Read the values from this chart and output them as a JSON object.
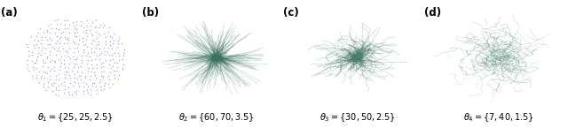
{
  "panels": [
    "(a)",
    "(b)",
    "(c)",
    "(d)"
  ],
  "labels": [
    "$\\theta_1 = \\{25, 25, 2.5\\}$",
    "$\\theta_2 = \\{60, 70, 3.5\\}$",
    "$\\theta_3 = \\{30, 50, 2.5\\}$",
    "$\\theta_4 = \\{7, 40, 1.5\\}$"
  ],
  "panel_color_a": "#9090c8",
  "panel_color_bcd": "#3a7060",
  "bg_color": "#ffffff",
  "label_fontsize": 7.0,
  "panel_letter_fontsize": 8.5
}
